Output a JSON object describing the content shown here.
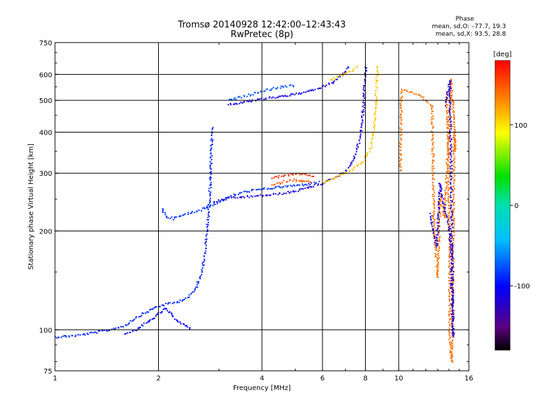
{
  "chart_data": {
    "type": "scatter",
    "title": "Tromsø 20140928 12:42:00–12:43:43",
    "subtitle": "RwPretec (8p)",
    "xlabel": "Frequency [MHz]",
    "ylabel": "Stationary phase Virtual Height [km]",
    "x_scale": "log",
    "y_scale": "log",
    "xlim": [
      1,
      16
    ],
    "ylim": [
      75,
      750
    ],
    "x_ticks": [
      1,
      2,
      4,
      6,
      8,
      10,
      16
    ],
    "y_ticks": [
      75,
      100,
      200,
      300,
      400,
      500,
      600,
      750
    ],
    "grid": true,
    "phase_header": "Phase",
    "phase_stats": [
      "mean, sd,O: –77.7, 19.3",
      "mean, sd,X:  93.5, 28.8"
    ],
    "colorbar": {
      "label": "[deg]",
      "range": [
        -180,
        180
      ],
      "ticks": [
        100,
        0,
        -100
      ],
      "colormap": "rainbow: black → purple → blue → cyan → green → yellow → orange → red"
    },
    "traces": [
      {
        "points": [
          [
            1.0,
            95
          ],
          [
            1.15,
            96
          ],
          [
            1.3,
            98
          ],
          [
            1.45,
            100
          ],
          [
            1.6,
            103
          ],
          [
            1.75,
            110
          ],
          [
            1.9,
            115
          ],
          [
            2.0,
            118
          ],
          [
            2.15,
            120
          ],
          [
            2.3,
            122
          ],
          [
            2.45,
            126
          ],
          [
            2.55,
            132
          ],
          [
            2.65,
            145
          ],
          [
            2.72,
            165
          ],
          [
            2.76,
            190
          ],
          [
            2.79,
            220
          ],
          [
            2.82,
            260
          ],
          [
            2.84,
            300
          ],
          [
            2.85,
            340
          ],
          [
            2.86,
            380
          ],
          [
            2.87,
            420
          ]
        ],
        "phase": -90
      },
      {
        "points": [
          [
            1.6,
            97
          ],
          [
            1.75,
            101
          ],
          [
            1.9,
            107
          ],
          [
            2.0,
            112
          ],
          [
            2.1,
            116
          ],
          [
            2.2,
            110
          ],
          [
            2.35,
            104
          ],
          [
            2.5,
            100
          ]
        ],
        "phase": -100
      },
      {
        "points": [
          [
            2.05,
            235
          ],
          [
            2.1,
            222
          ],
          [
            2.2,
            218
          ],
          [
            2.35,
            223
          ],
          [
            2.5,
            228
          ],
          [
            2.65,
            232
          ],
          [
            2.8,
            238
          ],
          [
            2.95,
            243
          ],
          [
            3.1,
            250
          ],
          [
            3.3,
            257
          ],
          [
            3.6,
            264
          ],
          [
            4.0,
            268
          ],
          [
            4.5,
            272
          ],
          [
            5.0,
            275
          ],
          [
            5.5,
            278
          ],
          [
            5.9,
            282
          ]
        ],
        "phase": -85
      },
      {
        "points": [
          [
            2.9,
            245
          ],
          [
            3.1,
            250
          ],
          [
            3.4,
            253
          ],
          [
            3.8,
            255
          ],
          [
            4.3,
            258
          ],
          [
            4.9,
            263
          ],
          [
            5.4,
            270
          ],
          [
            5.9,
            278
          ],
          [
            6.3,
            286
          ],
          [
            6.7,
            295
          ],
          [
            7.0,
            305
          ],
          [
            7.3,
            320
          ],
          [
            7.5,
            345
          ],
          [
            7.7,
            380
          ],
          [
            7.8,
            420
          ],
          [
            7.9,
            480
          ],
          [
            7.95,
            540
          ],
          [
            8.0,
            600
          ],
          [
            8.02,
            640
          ]
        ],
        "phase": -115
      },
      {
        "points": [
          [
            6.0,
            280
          ],
          [
            6.4,
            288
          ],
          [
            6.8,
            297
          ],
          [
            7.2,
            305
          ],
          [
            7.6,
            316
          ],
          [
            7.9,
            326
          ],
          [
            8.1,
            340
          ],
          [
            8.3,
            360
          ],
          [
            8.45,
            400
          ],
          [
            8.55,
            460
          ],
          [
            8.6,
            520
          ],
          [
            8.65,
            580
          ],
          [
            8.7,
            640
          ]
        ],
        "phase": 110
      },
      {
        "points": [
          [
            4.3,
            275
          ],
          [
            4.5,
            280
          ],
          [
            4.7,
            284
          ],
          [
            5.0,
            286
          ],
          [
            5.3,
            284
          ],
          [
            5.6,
            280
          ]
        ],
        "phase": 150
      },
      {
        "points": [
          [
            4.3,
            290
          ],
          [
            4.5,
            293
          ],
          [
            4.8,
            296
          ],
          [
            5.1,
            298
          ],
          [
            5.4,
            296
          ],
          [
            5.7,
            294
          ]
        ],
        "phase": 165
      },
      {
        "points": [
          [
            3.2,
            485
          ],
          [
            3.6,
            495
          ],
          [
            4.0,
            505
          ],
          [
            4.4,
            512
          ],
          [
            4.9,
            520
          ],
          [
            5.4,
            530
          ],
          [
            5.9,
            545
          ],
          [
            6.3,
            560
          ],
          [
            6.7,
            585
          ],
          [
            7.0,
            610
          ],
          [
            7.2,
            640
          ]
        ],
        "phase": -110
      },
      {
        "points": [
          [
            3.2,
            500
          ],
          [
            3.5,
            512
          ],
          [
            3.8,
            525
          ],
          [
            4.2,
            540
          ],
          [
            4.6,
            550
          ],
          [
            5.0,
            555
          ]
        ],
        "phase": -75
      },
      {
        "points": [
          [
            6.3,
            575
          ],
          [
            6.8,
            595
          ],
          [
            7.3,
            615
          ],
          [
            7.6,
            640
          ]
        ],
        "phase": 110
      },
      {
        "points": [
          [
            10.1,
            305
          ],
          [
            10.2,
            540
          ],
          [
            11.5,
            520
          ],
          [
            12.5,
            480
          ],
          [
            12.7,
            195
          ],
          [
            13.0,
            145
          ],
          [
            13.2,
            260
          ],
          [
            13.6,
            220
          ],
          [
            14.2,
            580
          ],
          [
            14.4,
            460
          ],
          [
            14.6,
            350
          ],
          [
            14.5,
            400
          ],
          [
            14.3,
            80
          ],
          [
            14.1,
            90
          ],
          [
            14.0,
            300
          ],
          [
            13.8,
            520
          ]
        ],
        "phase": 140
      },
      {
        "points": [
          [
            12.4,
            225
          ],
          [
            12.6,
            200
          ],
          [
            12.9,
            180
          ],
          [
            13.2,
            280
          ],
          [
            13.6,
            230
          ],
          [
            14.0,
            210
          ],
          [
            14.2,
            170
          ],
          [
            14.4,
            95
          ],
          [
            14.1,
            575
          ],
          [
            13.7,
            480
          ]
        ],
        "phase": -120
      }
    ]
  }
}
